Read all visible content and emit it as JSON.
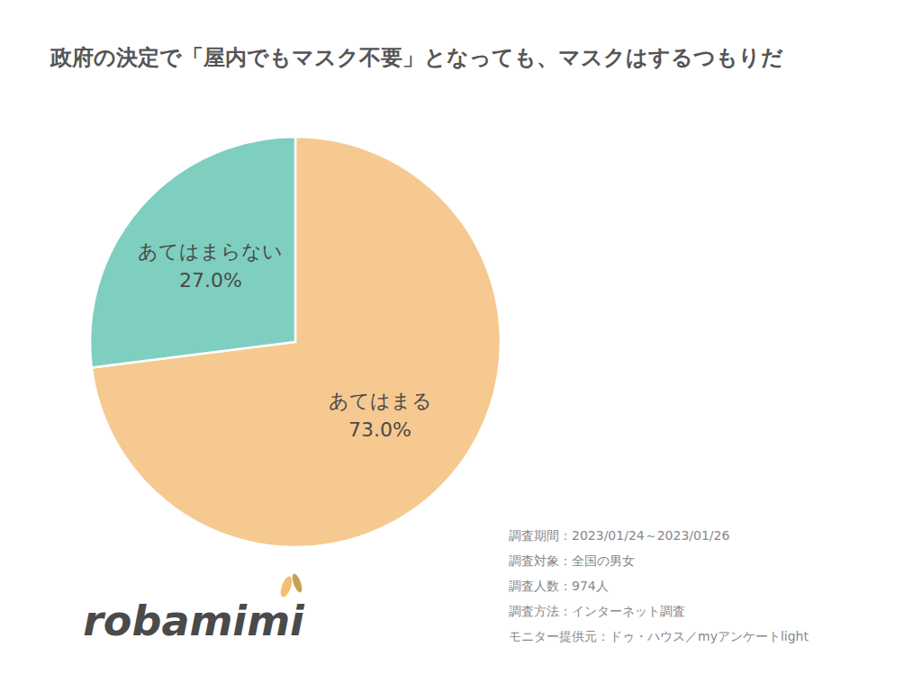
{
  "chart_data": {
    "type": "pie",
    "title": "政府の決定で「屋内でもマスク不要」となっても、マスクはするつもりだ",
    "categories": [
      "あてはまる",
      "あてはまらない"
    ],
    "values": [
      73.0,
      27.0
    ],
    "value_labels": [
      "73.0%",
      "27.0%"
    ],
    "colors": [
      "#F5C990",
      "#7ECFC0"
    ],
    "data_labels": true,
    "annotations": [
      "調査期間：2023/01/24～2023/01/26",
      "調査対象：全国の男女",
      "調査人数：974人",
      "調査方法：インターネット調査",
      "モニター提供元：ドゥ・ハウス／myアンケートlight",
      "robamimi"
    ]
  }
}
